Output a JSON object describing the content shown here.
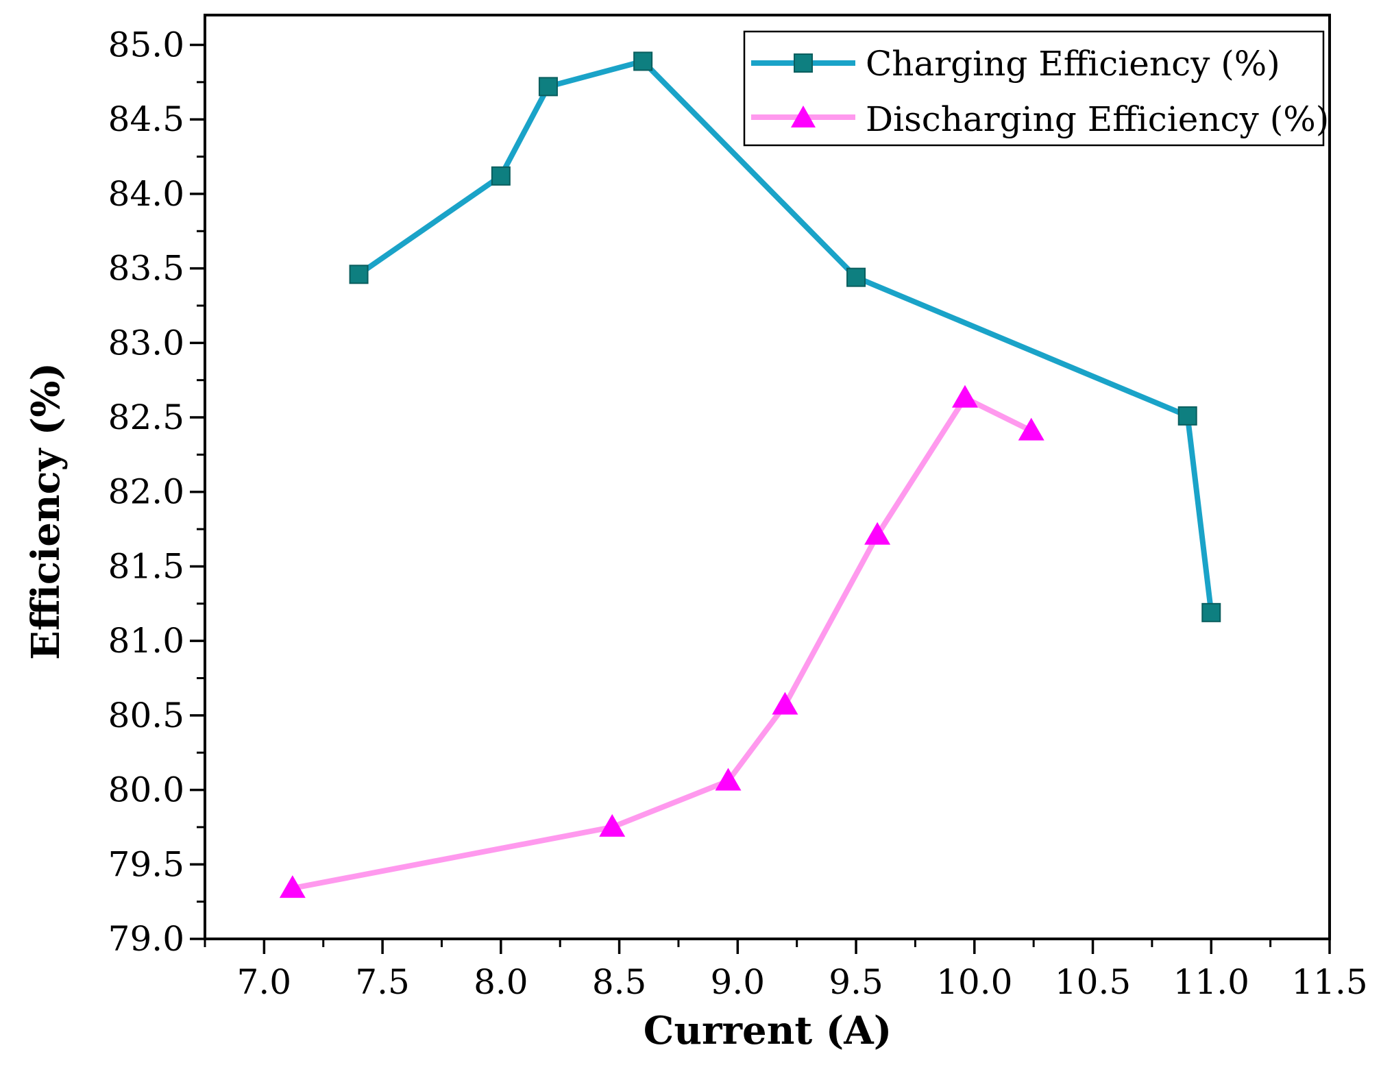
{
  "chart_data": {
    "type": "line",
    "title": "",
    "xlabel": "Current (A)",
    "ylabel": "Efficiency (%)",
    "xlim": [
      6.75,
      11.5
    ],
    "ylim": [
      79.0,
      85.2
    ],
    "xticks": [
      "7.0",
      "7.5",
      "8.0",
      "8.5",
      "9.0",
      "9.5",
      "10.0",
      "10.5",
      "11.0",
      "11.5"
    ],
    "xtick_values": [
      7.0,
      7.5,
      8.0,
      8.5,
      9.0,
      9.5,
      10.0,
      10.5,
      11.0,
      11.5
    ],
    "yticks": [
      "79.0",
      "79.5",
      "80.0",
      "80.5",
      "81.0",
      "81.5",
      "82.0",
      "82.5",
      "83.0",
      "83.5",
      "84.0",
      "84.5",
      "85.0"
    ],
    "ytick_values": [
      79.0,
      79.5,
      80.0,
      80.5,
      81.0,
      81.5,
      82.0,
      82.5,
      83.0,
      83.5,
      84.0,
      84.5,
      85.0
    ],
    "legend_position": "top-right",
    "series": [
      {
        "name": "Charging Efficiency (%)",
        "marker": "square",
        "line_color": "#1aa3c8",
        "marker_color": "#0e7f80",
        "x": [
          7.4,
          8.0,
          8.2,
          8.6,
          9.5,
          10.9,
          11.0
        ],
        "y": [
          83.46,
          84.12,
          84.72,
          84.89,
          83.44,
          82.51,
          81.19
        ]
      },
      {
        "name": "Discharging Efficiency (%)",
        "marker": "triangle",
        "line_color": "#ff99ee",
        "marker_color": "#ff00ff",
        "x": [
          7.12,
          8.47,
          8.96,
          9.2,
          9.59,
          9.96,
          10.24
        ],
        "y": [
          79.34,
          79.75,
          80.06,
          80.57,
          81.71,
          82.63,
          82.41
        ]
      }
    ]
  }
}
